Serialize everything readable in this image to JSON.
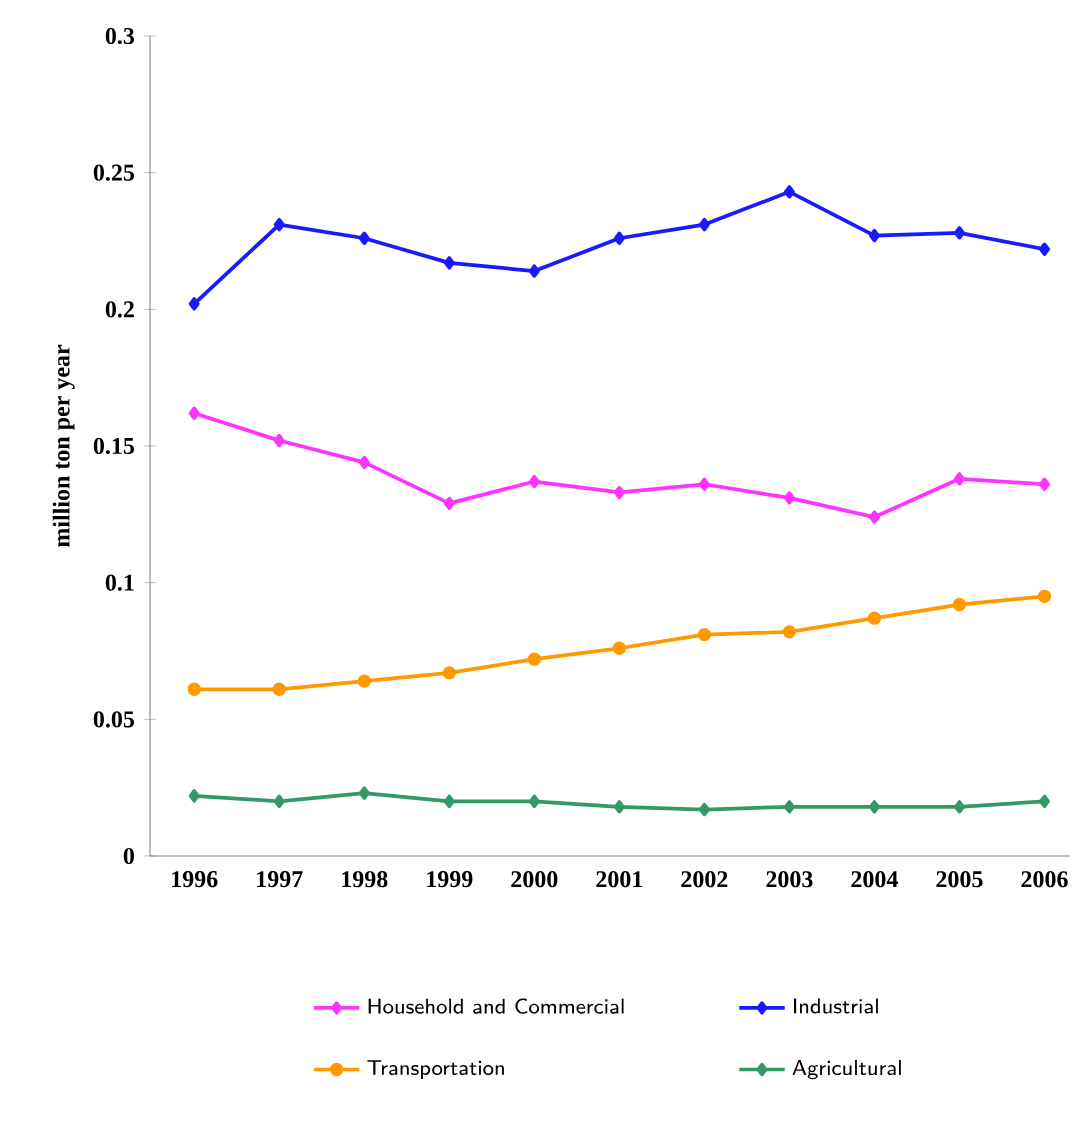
{
  "chart_data": {
    "type": "line",
    "ylabel": "million ton per year",
    "categories": [
      "1996",
      "1997",
      "1998",
      "1999",
      "2000",
      "2001",
      "2002",
      "2003",
      "2004",
      "2005",
      "2006"
    ],
    "series": [
      {
        "name": "Household and Commercial",
        "color": "#ff33ff",
        "values": [
          0.162,
          0.152,
          0.144,
          0.129,
          0.137,
          0.133,
          0.136,
          0.131,
          0.124,
          0.138,
          0.136
        ]
      },
      {
        "name": "Industrial",
        "color": "#1a1aff",
        "values": [
          0.202,
          0.231,
          0.226,
          0.217,
          0.214,
          0.226,
          0.231,
          0.243,
          0.227,
          0.228,
          0.222
        ]
      },
      {
        "name": "Transportation",
        "color": "#ff9900",
        "marker": "circle",
        "values": [
          0.061,
          0.061,
          0.064,
          0.067,
          0.072,
          0.076,
          0.081,
          0.082,
          0.087,
          0.092,
          0.095
        ]
      },
      {
        "name": "Agricultural",
        "color": "#339966",
        "values": [
          0.022,
          0.02,
          0.023,
          0.02,
          0.02,
          0.018,
          0.017,
          0.018,
          0.018,
          0.018,
          0.02
        ]
      }
    ],
    "ylim": [
      0,
      0.3
    ],
    "yticks": [
      0,
      0.05,
      0.1,
      0.15,
      0.2,
      0.25,
      0.3
    ],
    "marker": "diamond",
    "line_style": "solid",
    "legend": "bottom",
    "grid": false
  }
}
